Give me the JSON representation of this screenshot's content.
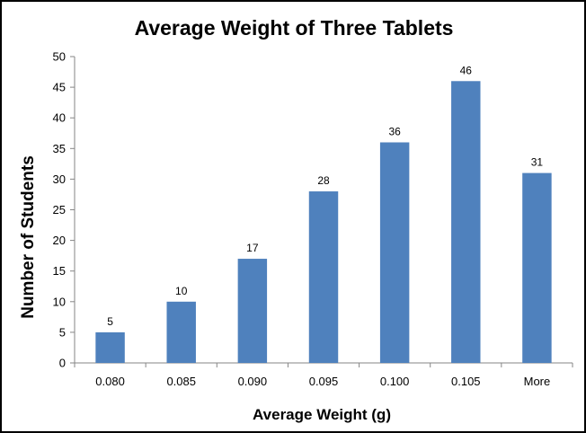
{
  "chart_data": {
    "type": "bar",
    "title": "Average Weight of Three Tablets",
    "xlabel": "Average Weight (g)",
    "ylabel": "Number of Students",
    "categories": [
      "0.080",
      "0.085",
      "0.090",
      "0.095",
      "0.100",
      "0.105",
      "More"
    ],
    "values": [
      5,
      10,
      17,
      28,
      36,
      46,
      31
    ],
    "ylim": [
      0,
      50
    ],
    "yticks": [
      0,
      5,
      10,
      15,
      20,
      25,
      30,
      35,
      40,
      45,
      50
    ],
    "data_labels": true,
    "grid": false,
    "legend": "none",
    "bar_color": "#4F81BD"
  }
}
